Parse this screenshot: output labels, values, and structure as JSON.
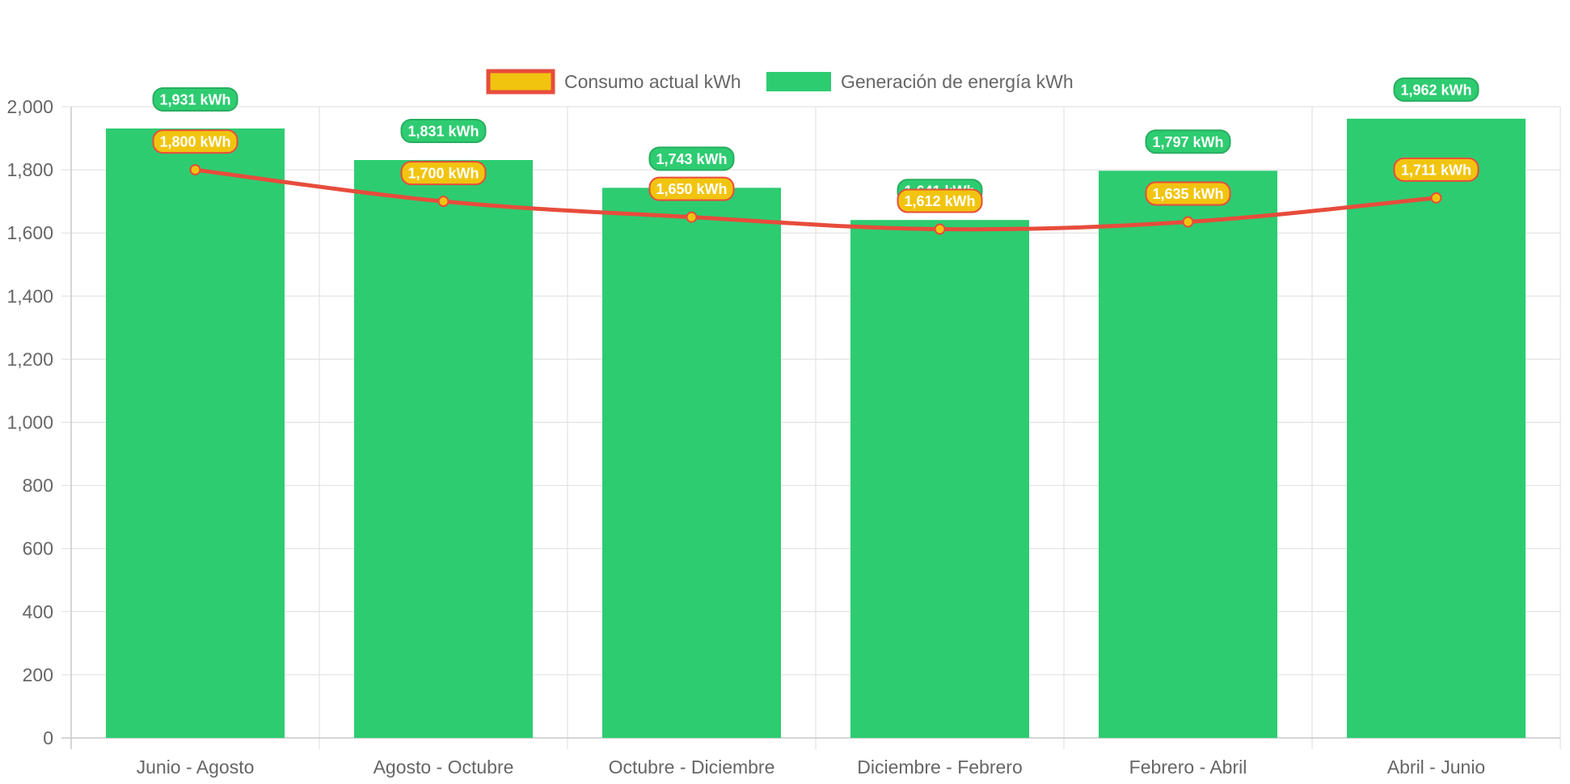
{
  "chart_data": {
    "type": "bar",
    "title": "",
    "xlabel": "",
    "ylabel": "",
    "ylim": [
      0,
      2000
    ],
    "ytick_step": 200,
    "grid": true,
    "legend_position": "top-center",
    "categories": [
      "Junio - Agosto",
      "Agosto - Octubre",
      "Octubre - Diciembre",
      "Diciembre - Febrero",
      "Febrero - Abril",
      "Abril - Junio"
    ],
    "series": [
      {
        "name": "Consumo actual kWh",
        "type": "line",
        "values": [
          1800,
          1700,
          1650,
          1612,
          1635,
          1711
        ],
        "labels": [
          "1,800 kWh",
          "1,700 kWh",
          "1,650 kWh",
          "1,612 kWh",
          "1,635 kWh",
          "1,711 kWh"
        ],
        "line_color": "#e74c3c",
        "fill_color": "#f1c40f"
      },
      {
        "name": "Generación de energía kWh",
        "type": "bar",
        "values": [
          1931,
          1831,
          1743,
          1641,
          1797,
          1962
        ],
        "labels": [
          "1,931 kWh",
          "1,831 kWh",
          "1,743 kWh",
          "1,641 kWh",
          "1,797 kWh",
          "1,962 kWh"
        ],
        "color": "#2ecc71",
        "label_border": "#27ae60"
      }
    ]
  }
}
